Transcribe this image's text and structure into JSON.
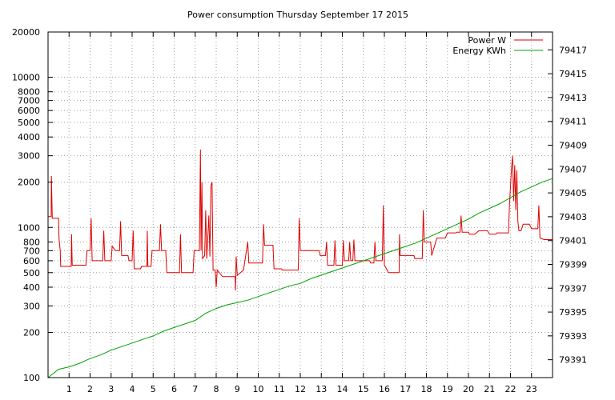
{
  "chart_data": {
    "type": "line",
    "title": "Power consumption Thursday September 17 2015",
    "xlabel": "",
    "ylabel": "",
    "y2label": "",
    "grid": true,
    "legend_position": "top-right",
    "x_range": [
      0,
      24
    ],
    "x_ticks": [
      "1",
      "2",
      "3",
      "4",
      "5",
      "6",
      "7",
      "8",
      "9",
      "10",
      "11",
      "12",
      "13",
      "14",
      "15",
      "16",
      "17",
      "18",
      "19",
      "20",
      "21",
      "22",
      "23"
    ],
    "y_left": {
      "scale": "log",
      "range": [
        100,
        20000
      ],
      "ticks": [
        {
          "value": 100,
          "label": "100"
        },
        {
          "value": 200,
          "label": "200"
        },
        {
          "value": 300,
          "label": "300"
        },
        {
          "value": 400,
          "label": "400"
        },
        {
          "value": 500,
          "label": "500"
        },
        {
          "value": 600,
          "label": "600"
        },
        {
          "value": 700,
          "label": "700"
        },
        {
          "value": 800,
          "label": "800"
        },
        {
          "value": 1000,
          "label": "1000"
        },
        {
          "value": 2000,
          "label": "2000"
        },
        {
          "value": 3000,
          "label": "3000"
        },
        {
          "value": 4000,
          "label": "4000"
        },
        {
          "value": 5000,
          "label": "5000"
        },
        {
          "value": 6000,
          "label": "6000"
        },
        {
          "value": 7000,
          "label": "7000"
        },
        {
          "value": 8000,
          "label": "8000"
        },
        {
          "value": 10000,
          "label": "10000"
        },
        {
          "value": 20000,
          "label": "20000"
        }
      ]
    },
    "y_right": {
      "scale": "linear",
      "range": [
        79389.5,
        79418.5
      ],
      "ticks": [
        "79391",
        "79393",
        "79395",
        "79397",
        "79399",
        "79401",
        "79403",
        "79405",
        "79407",
        "79409",
        "79411",
        "79413",
        "79415",
        "79417"
      ]
    },
    "series": [
      {
        "name": "Power W",
        "color": "#e00000",
        "axis": "left",
        "points": [
          [
            0.0,
            1180
          ],
          [
            0.15,
            1180
          ],
          [
            0.16,
            2200
          ],
          [
            0.2,
            1150
          ],
          [
            0.5,
            1150
          ],
          [
            0.52,
            850
          ],
          [
            0.58,
            700
          ],
          [
            0.6,
            550
          ],
          [
            1.1,
            550
          ],
          [
            1.12,
            900
          ],
          [
            1.15,
            560
          ],
          [
            1.8,
            560
          ],
          [
            1.85,
            700
          ],
          [
            2.0,
            700
          ],
          [
            2.05,
            1150
          ],
          [
            2.1,
            600
          ],
          [
            2.6,
            600
          ],
          [
            2.65,
            950
          ],
          [
            2.7,
            600
          ],
          [
            3.0,
            600
          ],
          [
            3.05,
            750
          ],
          [
            3.2,
            700
          ],
          [
            3.4,
            700
          ],
          [
            3.45,
            1100
          ],
          [
            3.5,
            650
          ],
          [
            3.8,
            650
          ],
          [
            3.85,
            600
          ],
          [
            4.0,
            600
          ],
          [
            4.05,
            950
          ],
          [
            4.1,
            530
          ],
          [
            4.4,
            530
          ],
          [
            4.45,
            550
          ],
          [
            4.7,
            550
          ],
          [
            4.72,
            950
          ],
          [
            4.75,
            550
          ],
          [
            4.9,
            550
          ],
          [
            4.95,
            700
          ],
          [
            5.3,
            700
          ],
          [
            5.35,
            1050
          ],
          [
            5.4,
            700
          ],
          [
            5.6,
            700
          ],
          [
            5.65,
            500
          ],
          [
            6.25,
            500
          ],
          [
            6.3,
            900
          ],
          [
            6.35,
            500
          ],
          [
            6.9,
            500
          ],
          [
            6.95,
            700
          ],
          [
            7.2,
            700
          ],
          [
            7.25,
            3300
          ],
          [
            7.28,
            700
          ],
          [
            7.32,
            2000
          ],
          [
            7.35,
            620
          ],
          [
            7.45,
            650
          ],
          [
            7.5,
            1300
          ],
          [
            7.55,
            620
          ],
          [
            7.65,
            1200
          ],
          [
            7.7,
            640
          ],
          [
            7.75,
            1900
          ],
          [
            7.8,
            2000
          ],
          [
            7.85,
            520
          ],
          [
            7.95,
            520
          ],
          [
            8.0,
            400
          ],
          [
            8.05,
            520
          ],
          [
            8.3,
            470
          ],
          [
            8.35,
            470
          ],
          [
            8.9,
            470
          ],
          [
            8.92,
            380
          ],
          [
            8.95,
            640
          ],
          [
            9.0,
            480
          ],
          [
            9.3,
            520
          ],
          [
            9.5,
            800
          ],
          [
            9.55,
            580
          ],
          [
            10.0,
            580
          ],
          [
            10.2,
            580
          ],
          [
            10.25,
            1050
          ],
          [
            10.3,
            760
          ],
          [
            10.7,
            760
          ],
          [
            10.75,
            530
          ],
          [
            11.1,
            530
          ],
          [
            11.15,
            520
          ],
          [
            11.9,
            520
          ],
          [
            11.95,
            1150
          ],
          [
            12.0,
            700
          ],
          [
            12.9,
            700
          ],
          [
            12.95,
            650
          ],
          [
            13.2,
            650
          ],
          [
            13.25,
            800
          ],
          [
            13.3,
            560
          ],
          [
            13.6,
            560
          ],
          [
            13.65,
            820
          ],
          [
            13.7,
            560
          ],
          [
            14.0,
            560
          ],
          [
            14.05,
            820
          ],
          [
            14.1,
            600
          ],
          [
            14.3,
            600
          ],
          [
            14.35,
            800
          ],
          [
            14.4,
            600
          ],
          [
            14.5,
            600
          ],
          [
            14.55,
            830
          ],
          [
            14.6,
            600
          ],
          [
            15.3,
            600
          ],
          [
            15.35,
            580
          ],
          [
            15.5,
            580
          ],
          [
            15.55,
            800
          ],
          [
            15.6,
            600
          ],
          [
            15.9,
            600
          ],
          [
            15.95,
            1400
          ],
          [
            16.0,
            560
          ],
          [
            16.2,
            500
          ],
          [
            16.7,
            500
          ],
          [
            16.72,
            900
          ],
          [
            16.75,
            650
          ],
          [
            17.4,
            650
          ],
          [
            17.45,
            620
          ],
          [
            17.8,
            620
          ],
          [
            17.85,
            1300
          ],
          [
            17.9,
            800
          ],
          [
            18.2,
            800
          ],
          [
            18.25,
            650
          ],
          [
            18.5,
            850
          ],
          [
            18.9,
            850
          ],
          [
            19.0,
            920
          ],
          [
            19.4,
            920
          ],
          [
            19.45,
            930
          ],
          [
            19.6,
            930
          ],
          [
            19.65,
            1200
          ],
          [
            19.7,
            930
          ],
          [
            20.0,
            930
          ],
          [
            20.05,
            900
          ],
          [
            20.3,
            900
          ],
          [
            20.5,
            950
          ],
          [
            20.9,
            950
          ],
          [
            21.0,
            900
          ],
          [
            21.3,
            900
          ],
          [
            21.35,
            920
          ],
          [
            21.9,
            920
          ],
          [
            21.95,
            1400
          ],
          [
            22.05,
            2500
          ],
          [
            22.1,
            3000
          ],
          [
            22.15,
            1500
          ],
          [
            22.2,
            2600
          ],
          [
            22.25,
            1300
          ],
          [
            22.3,
            2400
          ],
          [
            22.35,
            1100
          ],
          [
            22.4,
            950
          ],
          [
            22.5,
            950
          ],
          [
            22.6,
            1050
          ],
          [
            22.9,
            1050
          ],
          [
            23.0,
            980
          ],
          [
            23.3,
            980
          ],
          [
            23.35,
            1400
          ],
          [
            23.4,
            850
          ],
          [
            23.6,
            830
          ],
          [
            24.0,
            830
          ]
        ]
      },
      {
        "name": "Energy KWh",
        "color": "#00a000",
        "axis": "right",
        "points": [
          [
            0.0,
            79389.5
          ],
          [
            0.5,
            79390.2
          ],
          [
            1.0,
            79390.4
          ],
          [
            1.5,
            79390.7
          ],
          [
            2.0,
            79391.1
          ],
          [
            2.5,
            79391.4
          ],
          [
            3.0,
            79391.8
          ],
          [
            3.5,
            79392.1
          ],
          [
            4.0,
            79392.4
          ],
          [
            4.5,
            79392.7
          ],
          [
            5.0,
            79393.0
          ],
          [
            5.5,
            79393.4
          ],
          [
            6.0,
            79393.7
          ],
          [
            6.5,
            79394.0
          ],
          [
            7.0,
            79394.3
          ],
          [
            7.5,
            79394.9
          ],
          [
            8.0,
            79395.3
          ],
          [
            8.5,
            79395.6
          ],
          [
            9.0,
            79395.8
          ],
          [
            9.5,
            79396.0
          ],
          [
            10.0,
            79396.3
          ],
          [
            10.5,
            79396.6
          ],
          [
            11.0,
            79396.9
          ],
          [
            11.5,
            79397.2
          ],
          [
            12.0,
            79397.4
          ],
          [
            12.5,
            79397.8
          ],
          [
            13.0,
            79398.1
          ],
          [
            13.5,
            79398.4
          ],
          [
            14.0,
            79398.7
          ],
          [
            14.5,
            79399.0
          ],
          [
            15.0,
            79399.3
          ],
          [
            15.5,
            79399.6
          ],
          [
            16.0,
            79399.9
          ],
          [
            16.5,
            79400.2
          ],
          [
            17.0,
            79400.5
          ],
          [
            17.5,
            79400.8
          ],
          [
            18.0,
            79401.2
          ],
          [
            18.5,
            79401.6
          ],
          [
            19.0,
            79402.0
          ],
          [
            19.5,
            79402.4
          ],
          [
            20.0,
            79402.8
          ],
          [
            20.5,
            79403.3
          ],
          [
            21.0,
            79403.7
          ],
          [
            21.5,
            79404.1
          ],
          [
            22.0,
            79404.6
          ],
          [
            22.5,
            79405.1
          ],
          [
            23.0,
            79405.5
          ],
          [
            23.5,
            79405.9
          ],
          [
            24.0,
            79406.2
          ]
        ]
      }
    ]
  }
}
